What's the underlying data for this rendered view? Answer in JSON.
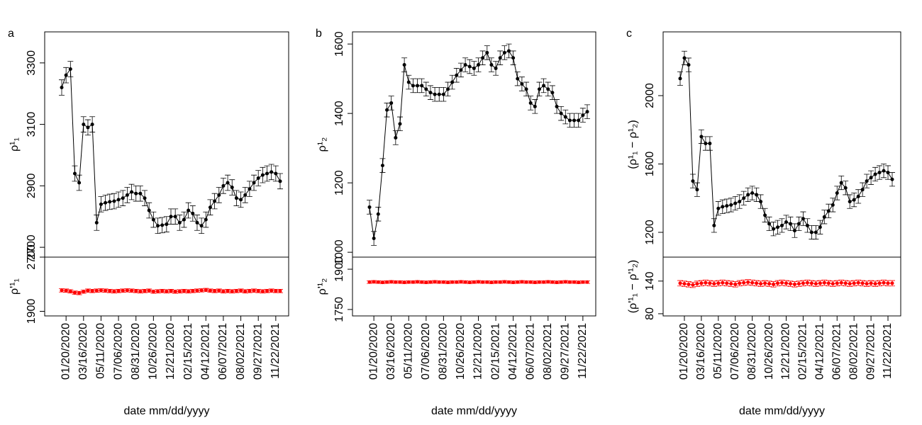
{
  "chart_data": {
    "type": "line",
    "xlabel": "date mm/dd/yyyy",
    "categories": [
      null,
      "01/20/2020",
      null,
      null,
      null,
      "03/16/2020",
      null,
      null,
      null,
      "05/11/2020",
      null,
      null,
      null,
      "07/06/2020",
      null,
      null,
      null,
      "08/31/2020",
      null,
      null,
      null,
      "10/26/2020",
      null,
      null,
      null,
      "12/21/2020",
      null,
      null,
      null,
      "02/15/2021",
      null,
      null,
      null,
      "04/12/2021",
      null,
      null,
      null,
      "06/07/2021",
      null,
      null,
      null,
      "08/02/2021",
      null,
      null,
      null,
      "09/27/2021",
      null,
      null,
      null,
      "11/22/2021",
      null
    ],
    "panels": [
      {
        "label": "a",
        "upper": {
          "ylabel": "ρ¹₁",
          "color": "#000000",
          "ylim": [
            2668,
            3401
          ],
          "yticks": [
            2700,
            2900,
            3100,
            3300
          ],
          "error": 25,
          "values": [
            3220,
            3260,
            3280,
            2940,
            2910,
            3100,
            3090,
            3100,
            2780,
            2840,
            2845,
            2848,
            2850,
            2855,
            2860,
            2870,
            2880,
            2875,
            2875,
            2860,
            2820,
            2790,
            2770,
            2772,
            2775,
            2800,
            2800,
            2780,
            2790,
            2820,
            2810,
            2780,
            2770,
            2790,
            2830,
            2850,
            2870,
            2900,
            2910,
            2895,
            2860,
            2855,
            2870,
            2890,
            2910,
            2925,
            2935,
            2940,
            2945,
            2940,
            2915
          ]
        },
        "lower": {
          "ylabel": "ρ'¹₁",
          "color": "#ff0000",
          "ylim": [
            1832,
            2700
          ],
          "yticks": [
            1900,
            2700
          ],
          "error": 25,
          "values": [
            2210,
            2205,
            2195,
            2175,
            2170,
            2190,
            2205,
            2200,
            2205,
            2210,
            2205,
            2200,
            2195,
            2200,
            2205,
            2210,
            2205,
            2200,
            2195,
            2200,
            2205,
            2190,
            2195,
            2200,
            2195,
            2200,
            2190,
            2195,
            2200,
            2195,
            2200,
            2205,
            2210,
            2215,
            2205,
            2200,
            2205,
            2195,
            2200,
            2195,
            2200,
            2205,
            2195,
            2200,
            2205,
            2200,
            2195,
            2200,
            2205,
            2200,
            2200
          ]
        }
      },
      {
        "label": "b",
        "upper": {
          "ylabel": "ρ¹₂",
          "color": "#000000",
          "ylim": [
            986,
            1635
          ],
          "yticks": [
            1000,
            1200,
            1400,
            1600
          ],
          "error": 20,
          "values": [
            1130,
            1040,
            1110,
            1250,
            1410,
            1430,
            1330,
            1370,
            1540,
            1490,
            1480,
            1480,
            1480,
            1470,
            1460,
            1455,
            1455,
            1455,
            1470,
            1490,
            1510,
            1525,
            1540,
            1535,
            1530,
            1540,
            1560,
            1575,
            1540,
            1530,
            1560,
            1575,
            1580,
            1560,
            1500,
            1485,
            1470,
            1430,
            1420,
            1470,
            1480,
            1470,
            1460,
            1420,
            1400,
            1390,
            1380,
            1380,
            1380,
            1395,
            1405
          ]
        },
        "lower": {
          "ylabel": "ρ'¹₂",
          "color": "#ff0000",
          "ylim": [
            1726,
            1945
          ],
          "yticks": [
            1750,
            1900
          ],
          "error": 5,
          "values": [
            1852,
            1853,
            1852,
            1851,
            1852,
            1853,
            1852,
            1852,
            1851,
            1852,
            1852,
            1853,
            1852,
            1851,
            1852,
            1853,
            1852,
            1852,
            1851,
            1852,
            1852,
            1853,
            1852,
            1851,
            1852,
            1853,
            1852,
            1852,
            1851,
            1852,
            1852,
            1853,
            1852,
            1851,
            1852,
            1853,
            1852,
            1852,
            1851,
            1852,
            1852,
            1853,
            1852,
            1851,
            1852,
            1853,
            1852,
            1852,
            1851,
            1852,
            1852
          ]
        }
      },
      {
        "label": "c",
        "upper": {
          "ylabel": "(ρ¹₁ − ρ¹₂)",
          "color": "#000000",
          "ylim": [
            1055,
            2373
          ],
          "yticks": [
            1200,
            1600,
            2000
          ],
          "error": 40,
          "values": [
            2100,
            2220,
            2180,
            1500,
            1450,
            1760,
            1720,
            1720,
            1240,
            1340,
            1350,
            1355,
            1360,
            1370,
            1380,
            1400,
            1420,
            1430,
            1420,
            1380,
            1300,
            1250,
            1220,
            1230,
            1240,
            1260,
            1250,
            1210,
            1250,
            1280,
            1240,
            1200,
            1200,
            1230,
            1290,
            1325,
            1360,
            1430,
            1490,
            1460,
            1380,
            1390,
            1410,
            1450,
            1500,
            1520,
            1540,
            1550,
            1560,
            1550,
            1510
          ]
        },
        "lower": {
          "ylabel": "(ρ'¹₁ − ρ'¹₂)",
          "color": "#ff0000",
          "ylim": [
            76,
            184
          ],
          "yticks": [
            80,
            140
          ],
          "error": 5,
          "values": [
            136,
            135,
            134,
            133,
            135,
            136,
            137,
            136,
            135,
            136,
            137,
            136,
            135,
            134,
            136,
            137,
            138,
            137,
            136,
            135,
            136,
            135,
            134,
            136,
            137,
            136,
            135,
            134,
            135,
            136,
            137,
            136,
            135,
            136,
            137,
            136,
            135,
            136,
            137,
            136,
            135,
            136,
            137,
            136,
            135,
            136,
            135,
            136,
            137,
            136,
            136
          ]
        }
      }
    ]
  }
}
